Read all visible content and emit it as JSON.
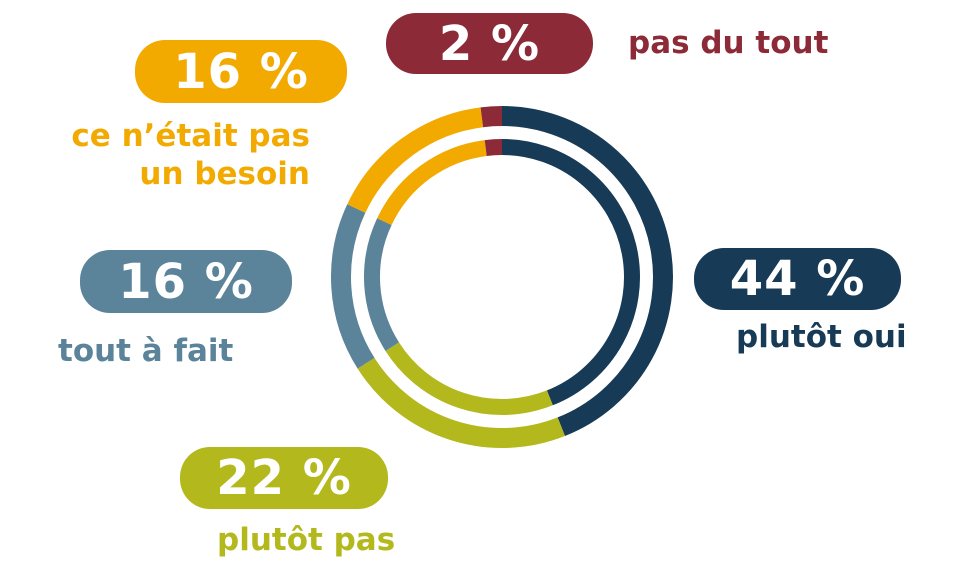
{
  "chart_data": {
    "type": "pie",
    "variant": "double-ring-donut",
    "slices": [
      {
        "label": "plutôt oui",
        "value": 44,
        "value_label": "44 %",
        "color": "#173a57"
      },
      {
        "label": "plutôt pas",
        "value": 22,
        "value_label": "22 %",
        "color": "#b3b91c"
      },
      {
        "label": "tout à fait",
        "value": 16,
        "value_label": "16 %",
        "color": "#5b849b"
      },
      {
        "label_lines": [
          "ce n’était pas",
          "un besoin"
        ],
        "value": 16,
        "value_label": "16 %",
        "color": "#f2aa00"
      },
      {
        "label": "pas du tout",
        "value": 2,
        "value_label": "2 %",
        "color": "#8c2a37"
      }
    ]
  }
}
